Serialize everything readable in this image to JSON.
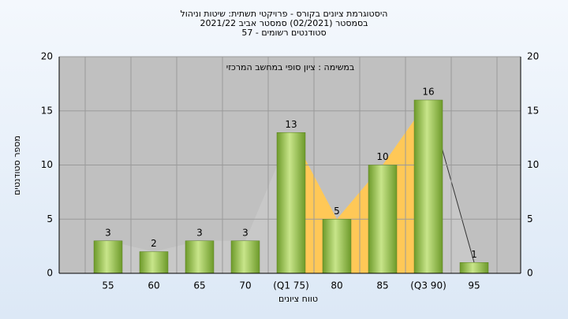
{
  "chart_data": {
    "type": "bar",
    "title": [
      "היסטוגרמת ציונים בקורס - פרויקטי תשתית: שיטות וניהול",
      "בסמסטר  (02/2021)  סמסטר אביב 2021/22",
      "סטודנטים רשומים - 57"
    ],
    "annotation": "במשימה : ציון סופי במחשב המרכזי",
    "ylabel": "מספר סטודנטים",
    "xlabel": "טווח ציונים",
    "categories": [
      "55",
      "60",
      "65",
      "70",
      "(Q1 75)",
      "80",
      "85",
      "(Q3 90)",
      "95"
    ],
    "values": [
      3,
      2,
      3,
      3,
      13,
      5,
      10,
      16,
      1
    ],
    "color": "#8fc04a",
    "area_colors": [
      "#c8c8c8",
      "#ffc857"
    ],
    "quartile_range": [
      "(Q1 75)",
      "(Q3 90)"
    ],
    "ylim": [
      0,
      20
    ],
    "yticks": [
      0,
      5,
      10,
      15,
      20
    ],
    "grid": true
  }
}
